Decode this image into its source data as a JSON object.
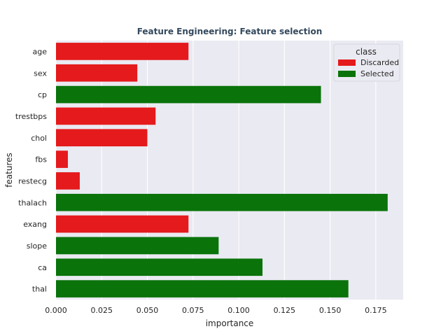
{
  "chart_data": {
    "type": "bar",
    "orientation": "horizontal",
    "title": "Feature Engineering: Feature selection",
    "xlabel": "importance",
    "ylabel": "features",
    "xlim": [
      0,
      0.19
    ],
    "xticks": [
      "0.000",
      "0.025",
      "0.050",
      "0.075",
      "0.100",
      "0.125",
      "0.150",
      "0.175"
    ],
    "grid": true,
    "legend": {
      "title": "class",
      "placement": "top-right",
      "entries": [
        {
          "label": "Discarded",
          "color": "#e41a1c"
        },
        {
          "label": "Selected",
          "color": "#0a730a"
        }
      ]
    },
    "categories": [
      "age",
      "sex",
      "cp",
      "trestbps",
      "chol",
      "fbs",
      "restecg",
      "thalach",
      "exang",
      "slope",
      "ca",
      "thal"
    ],
    "values": [
      0.0725,
      0.0445,
      0.145,
      0.0545,
      0.05,
      0.0065,
      0.013,
      0.1815,
      0.0725,
      0.089,
      0.113,
      0.16
    ],
    "classes": [
      "Discarded",
      "Discarded",
      "Selected",
      "Discarded",
      "Discarded",
      "Discarded",
      "Discarded",
      "Selected",
      "Discarded",
      "Selected",
      "Selected",
      "Selected"
    ]
  }
}
